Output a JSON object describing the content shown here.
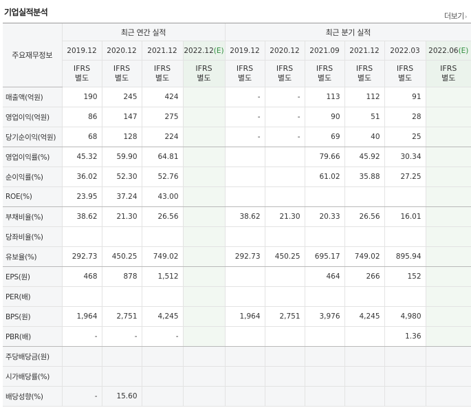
{
  "section_title": "기업실적분석",
  "more_label": "더보기",
  "more_icon": "chevron-right-icon",
  "corner_label": "주요재무정보",
  "groups": {
    "annual": "최근 연간 실적",
    "quarter": "최근 분기 실적"
  },
  "periods": [
    {
      "label": "2019.12",
      "est": ""
    },
    {
      "label": "2020.12",
      "est": ""
    },
    {
      "label": "2021.12",
      "est": ""
    },
    {
      "label": "2022.12",
      "est": "(E)"
    },
    {
      "label": "2019.12",
      "est": ""
    },
    {
      "label": "2020.12",
      "est": ""
    },
    {
      "label": "2021.09",
      "est": ""
    },
    {
      "label": "2021.12",
      "est": ""
    },
    {
      "label": "2022.03",
      "est": ""
    },
    {
      "label": "2022.06",
      "est": "(E)"
    }
  ],
  "ifrs": [
    {
      "line1": "IFRS",
      "line2": "별도"
    },
    {
      "line1": "IFRS",
      "line2": "별도"
    },
    {
      "line1": "IFRS",
      "line2": "별도"
    },
    {
      "line1": "IFRS",
      "line2": "별도"
    },
    {
      "line1": "IFRS",
      "line2": "별도"
    },
    {
      "line1": "IFRS",
      "line2": "별도"
    },
    {
      "line1": "IFRS",
      "line2": "별도"
    },
    {
      "line1": "IFRS",
      "line2": "별도"
    },
    {
      "line1": "IFRS",
      "line2": "별도"
    },
    {
      "line1": "IFRS",
      "line2": "별도"
    }
  ],
  "rows": [
    {
      "label": "매출액(억원)",
      "values": [
        "190",
        "245",
        "424",
        "",
        "-",
        "-",
        "113",
        "112",
        "91",
        ""
      ]
    },
    {
      "label": "영업이익(억원)",
      "values": [
        "86",
        "147",
        "275",
        "",
        "-",
        "-",
        "90",
        "51",
        "28",
        ""
      ]
    },
    {
      "label": "당기순이익(억원)",
      "values": [
        "68",
        "128",
        "224",
        "",
        "-",
        "-",
        "69",
        "40",
        "25",
        ""
      ]
    },
    {
      "label": "영업이익률(%)",
      "values": [
        "45.32",
        "59.90",
        "64.81",
        "",
        "",
        "",
        "79.66",
        "45.92",
        "30.34",
        ""
      ]
    },
    {
      "label": "순이익률(%)",
      "values": [
        "36.02",
        "52.30",
        "52.76",
        "",
        "",
        "",
        "61.02",
        "35.88",
        "27.25",
        ""
      ]
    },
    {
      "label": "ROE(%)",
      "values": [
        "23.95",
        "37.24",
        "43.00",
        "",
        "",
        "",
        "",
        "",
        "",
        ""
      ]
    },
    {
      "label": "부채비율(%)",
      "values": [
        "38.62",
        "21.30",
        "26.56",
        "",
        "38.62",
        "21.30",
        "20.33",
        "26.56",
        "16.01",
        ""
      ]
    },
    {
      "label": "당좌비율(%)",
      "values": [
        "",
        "",
        "",
        "",
        "",
        "",
        "",
        "",
        "",
        ""
      ]
    },
    {
      "label": "유보율(%)",
      "values": [
        "292.73",
        "450.25",
        "749.02",
        "",
        "292.73",
        "450.25",
        "695.17",
        "749.02",
        "895.94",
        ""
      ]
    },
    {
      "label": "EPS(원)",
      "values": [
        "468",
        "878",
        "1,512",
        "",
        "",
        "",
        "464",
        "266",
        "152",
        ""
      ]
    },
    {
      "label": "PER(배)",
      "values": [
        "",
        "",
        "",
        "",
        "",
        "",
        "",
        "",
        "",
        ""
      ]
    },
    {
      "label": "BPS(원)",
      "values": [
        "1,964",
        "2,751",
        "4,245",
        "",
        "1,964",
        "2,751",
        "3,976",
        "4,245",
        "4,980",
        ""
      ]
    },
    {
      "label": "PBR(배)",
      "values": [
        "-",
        "-",
        "-",
        "",
        "",
        "",
        "",
        "",
        "1.36",
        ""
      ]
    },
    {
      "label": "주당배당금(원)",
      "values": [
        "",
        "",
        "",
        "",
        "",
        "",
        "",
        "",
        "",
        ""
      ]
    },
    {
      "label": "시가배당률(%)",
      "values": [
        "",
        "",
        "",
        "",
        "",
        "",
        "",
        "",
        "",
        ""
      ]
    },
    {
      "label": "배당성향(%)",
      "values": [
        "-",
        "15.60",
        "",
        "",
        "",
        "",
        "",
        "",
        "",
        ""
      ]
    }
  ]
}
